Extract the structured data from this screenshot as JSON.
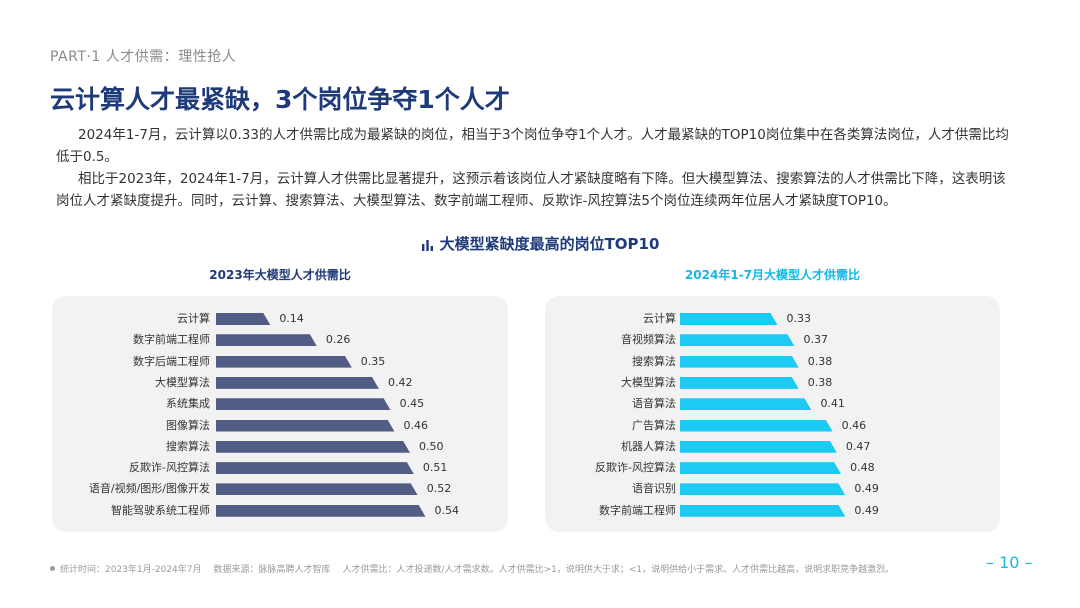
{
  "header": {
    "part": "PART·1  人才供需：理性抢人",
    "title": "云计算人才最紧缺，3个岗位争夺1个人才"
  },
  "body": {
    "paragraph1": "2024年1-7月，云计算以0.33的人才供需比成为最紧缺的岗位，相当于3个岗位争夺1个人才。人才最紧缺的TOP10岗位集中在各类算法岗位，人才供需比均低于0.5。",
    "paragraph2": "相比于2023年，2024年1-7月，云计算人才供需比显著提升，这预示着该岗位人才紧缺度略有下降。但大模型算法、搜索算法的人才供需比下降，这表明该岗位人才紧缺度提升。同时，云计算、搜索算法、大模型算法、数字前端工程师、反欺诈-风控算法5个岗位连续两年位居人才紧缺度TOP10。"
  },
  "chart_section": {
    "title": "大模型紧缺度最高的岗位TOP10",
    "title_icon": "bar-chart-icon"
  },
  "chart_data": [
    {
      "type": "bar",
      "orientation": "horizontal",
      "title": "2023年大模型人才供需比",
      "categories": [
        "云计算",
        "数字前端工程师",
        "数字后端工程师",
        "大模型算法",
        "系统集成",
        "图像算法",
        "搜索算法",
        "反欺诈-风控算法",
        "语音/视频/图形/图像开发",
        "智能驾驶系统工程师"
      ],
      "values": [
        0.14,
        0.26,
        0.35,
        0.42,
        0.45,
        0.46,
        0.5,
        0.51,
        0.52,
        0.54
      ],
      "labels": [
        "0.14",
        "0.26",
        "0.35",
        "0.42",
        "0.45",
        "0.46",
        "0.50",
        "0.51",
        "0.52",
        "0.54"
      ],
      "color": "#525d85",
      "xlim": [
        0,
        0.6
      ]
    },
    {
      "type": "bar",
      "orientation": "horizontal",
      "title": "2024年1-7月大模型人才供需比",
      "categories": [
        "云计算",
        "音视频算法",
        "搜索算法",
        "大模型算法",
        "语音算法",
        "广告算法",
        "机器人算法",
        "反欺诈-风控算法",
        "语音识别",
        "数字前端工程师"
      ],
      "values": [
        0.33,
        0.37,
        0.38,
        0.38,
        0.41,
        0.46,
        0.47,
        0.48,
        0.49,
        0.49
      ],
      "labels": [
        "0.33",
        "0.37",
        "0.38",
        "0.38",
        "0.41",
        "0.46",
        "0.47",
        "0.48",
        "0.49",
        "0.49"
      ],
      "color": "#1ccaf3",
      "xlim": [
        0.1,
        0.55
      ]
    }
  ],
  "footer": {
    "stat_time": "统计时间：2023年1月-2024年7月",
    "source": "数据来源：脉脉高聘人才智库",
    "note": "人才供需比：人才投递数/人才需求数。人才供需比>1，说明供大于求；<1，说明供给小于需求。人才供需比越高，说明求职竞争越激烈。"
  },
  "page_number": "– 10 –"
}
